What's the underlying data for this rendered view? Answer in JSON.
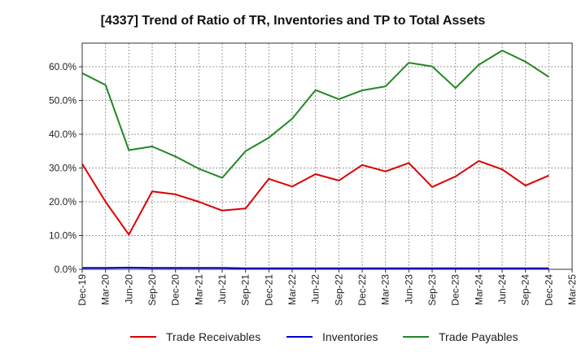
{
  "chart_data": {
    "type": "line",
    "title": "[4337]  Trend of Ratio of TR, Inventories and TP to Total Assets",
    "xlabel": "",
    "ylabel": "",
    "x": [
      "Dec-19",
      "Mar-20",
      "Jun-20",
      "Sep-20",
      "Dec-20",
      "Mar-21",
      "Jun-21",
      "Sep-21",
      "Dec-21",
      "Mar-22",
      "Jun-22",
      "Sep-22",
      "Dec-22",
      "Mar-23",
      "Jun-23",
      "Sep-23",
      "Dec-23",
      "Mar-24",
      "Jun-24",
      "Sep-24",
      "Dec-24"
    ],
    "x_tick_labels": [
      "Dec-19",
      "Mar-20",
      "Jun-20",
      "Sep-20",
      "Dec-20",
      "Mar-21",
      "Jun-21",
      "Sep-21",
      "Dec-21",
      "Mar-22",
      "Jun-22",
      "Sep-22",
      "Dec-22",
      "Mar-23",
      "Jun-23",
      "Sep-23",
      "Dec-23",
      "Mar-24",
      "Jun-24",
      "Sep-24",
      "Dec-24",
      "Mar-25"
    ],
    "y_ticks": [
      0,
      10,
      20,
      30,
      40,
      50,
      60
    ],
    "y_tick_labels": [
      "0.0%",
      "10.0%",
      "20.0%",
      "30.0%",
      "40.0%",
      "50.0%",
      "60.0%"
    ],
    "ylim": [
      0,
      67
    ],
    "grid": true,
    "legend_position": "bottom",
    "series": [
      {
        "name": "Trade Receivables",
        "color": "#dd0000",
        "values": [
          31.2,
          20.0,
          10.3,
          23.1,
          22.2,
          20.0,
          17.4,
          18.0,
          26.8,
          24.5,
          28.2,
          26.3,
          30.9,
          29.0,
          31.5,
          24.4,
          27.5,
          32.1,
          29.6,
          24.8,
          27.8
        ]
      },
      {
        "name": "Inventories",
        "color": "#0000cc",
        "values": [
          0.4,
          0.4,
          0.5,
          0.4,
          0.4,
          0.4,
          0.4,
          0.3,
          0.3,
          0.3,
          0.3,
          0.3,
          0.3,
          0.3,
          0.3,
          0.3,
          0.3,
          0.3,
          0.3,
          0.3,
          0.3
        ]
      },
      {
        "name": "Trade Payables",
        "color": "#228822",
        "values": [
          58.1,
          54.6,
          35.3,
          36.4,
          33.4,
          29.8,
          27.1,
          35.0,
          39.0,
          44.6,
          53.1,
          50.4,
          53.0,
          54.2,
          61.2,
          60.1,
          53.7,
          60.6,
          64.8,
          61.5,
          57.0
        ]
      }
    ]
  }
}
